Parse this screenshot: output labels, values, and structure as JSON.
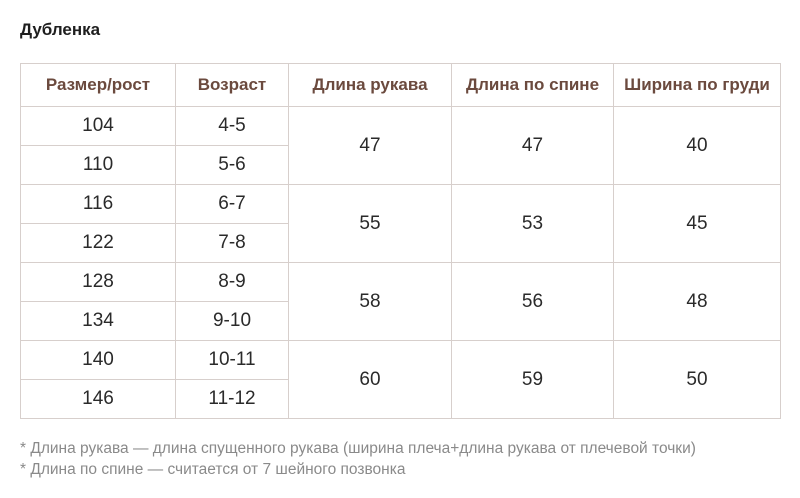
{
  "title": "Дубленка",
  "headers": [
    "Размер/рост",
    "Возраст",
    "Длина рукава",
    "Длина по спине",
    "Ширина по груди"
  ],
  "groups": [
    {
      "rows": [
        {
          "size": "104",
          "age": "4-5"
        },
        {
          "size": "110",
          "age": "5-6"
        }
      ],
      "sleeve": "47",
      "back": "47",
      "chest": "40"
    },
    {
      "rows": [
        {
          "size": "116",
          "age": "6-7"
        },
        {
          "size": "122",
          "age": "7-8"
        }
      ],
      "sleeve": "55",
      "back": "53",
      "chest": "45"
    },
    {
      "rows": [
        {
          "size": "128",
          "age": "8-9"
        },
        {
          "size": "134",
          "age": "9-10"
        }
      ],
      "sleeve": "58",
      "back": "56",
      "chest": "48"
    },
    {
      "rows": [
        {
          "size": "140",
          "age": "10-11"
        },
        {
          "size": "146",
          "age": "11-12"
        }
      ],
      "sleeve": "60",
      "back": "59",
      "chest": "50"
    }
  ],
  "notes": [
    "* Длина рукава — длина спущенного рукава (ширина плеча+длина рукава от плечевой точки)",
    "* Длина по спине — считается от 7 шейного позвонка"
  ]
}
